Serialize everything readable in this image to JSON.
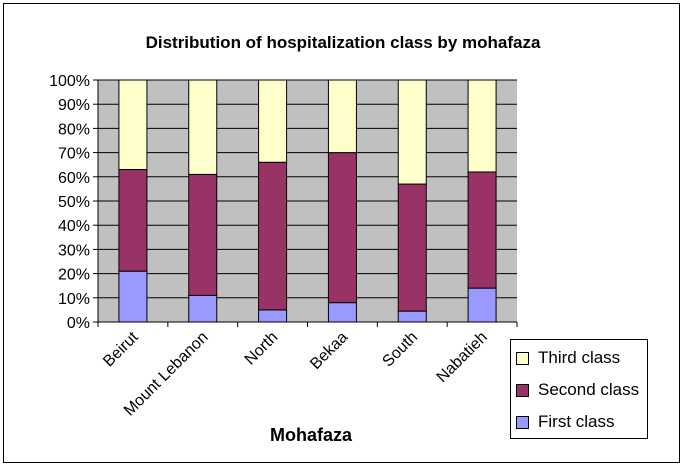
{
  "chart_data": {
    "type": "bar",
    "stacked": true,
    "title": "Distribution of hospitalization class by mohafaza",
    "xlabel": "Mohafaza",
    "ylabel": "",
    "ylim": [
      0,
      100
    ],
    "yticks": [
      "0%",
      "10%",
      "20%",
      "30%",
      "40%",
      "50%",
      "60%",
      "70%",
      "80%",
      "90%",
      "100%"
    ],
    "categories": [
      "Beirut",
      "Mount Lebanon",
      "North",
      "Bekaa",
      "South",
      "Nabatieh"
    ],
    "series": [
      {
        "name": "First class",
        "color": "#9999ff",
        "values": [
          21,
          11,
          5,
          8,
          4.5,
          14
        ]
      },
      {
        "name": "Second class",
        "color": "#993366",
        "values": [
          42,
          50,
          61,
          62,
          52.5,
          48
        ]
      },
      {
        "name": "Third class",
        "color": "#ffffcc",
        "values": [
          37,
          39,
          34,
          30,
          43,
          38
        ]
      }
    ],
    "legend_position": "right",
    "plot_background": "#c0c0c0",
    "grid": true
  }
}
